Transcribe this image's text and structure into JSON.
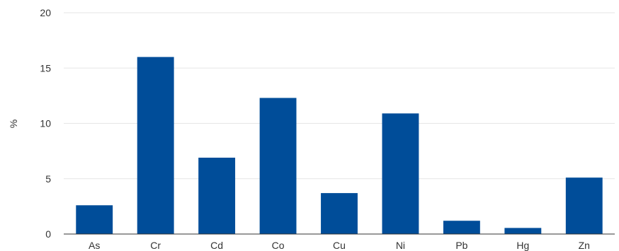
{
  "chart_data": {
    "type": "bar",
    "title": "",
    "xlabel": "",
    "ylabel": "%",
    "ylim": [
      0,
      20
    ],
    "yticks": [
      0,
      5,
      10,
      15,
      20
    ],
    "grid": true,
    "legend": "none",
    "categories": [
      "As",
      "Cr",
      "Cd",
      "Co",
      "Cu",
      "Ni",
      "Pb",
      "Hg",
      "Zn"
    ],
    "values": [
      2.6,
      16.0,
      6.9,
      12.3,
      3.7,
      10.9,
      1.2,
      0.55,
      5.1
    ],
    "bar_color": "#004d99"
  }
}
